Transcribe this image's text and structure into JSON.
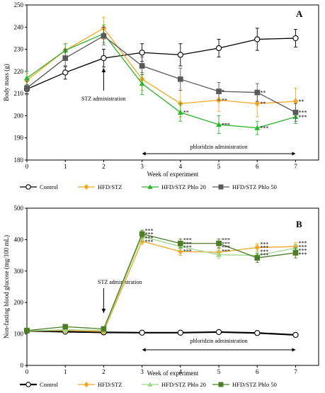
{
  "figure": {
    "panels": [
      {
        "letter": "A",
        "ylabel": "Body mass (g)",
        "xlabel": "Week of experiment",
        "stz_label": "STZ administration",
        "phlo_label": "phloridzin administration"
      },
      {
        "letter": "B",
        "ylabel": "Non-fasting blood glucose (mg/100 mL)",
        "xlabel": "Week of experiment",
        "stz_label": "STZ administration",
        "phlo_label": "phloridzin administration"
      }
    ],
    "legends": [
      [
        "Control",
        "HFD/STZ",
        "HFD/STZ Phlo 20",
        "HFD/STZ Phlo 50"
      ],
      [
        "Control",
        "HFD/STZ",
        "HFD/STZ Phlo 20",
        "HFD/STZ Phlo 50"
      ]
    ]
  },
  "chart_data": [
    {
      "type": "line",
      "panel": "A",
      "title": "",
      "xlabel": "Week of experiment",
      "ylabel": "Body mass (g)",
      "x": [
        0,
        1,
        2,
        3,
        4,
        5,
        6,
        7
      ],
      "xlim": [
        0,
        7.6
      ],
      "ylim": [
        180,
        250
      ],
      "yticks": [
        180,
        190,
        200,
        210,
        220,
        230,
        240,
        250
      ],
      "grid": false,
      "legend_position": "bottom",
      "series": [
        {
          "name": "Control",
          "values": [
            212,
            219.5,
            226,
            228.5,
            227.5,
            230.5,
            234.5,
            235
          ],
          "errors": [
            2,
            3,
            4,
            4,
            5,
            4,
            5,
            4
          ],
          "color": "#000000",
          "marker": "circle-open"
        },
        {
          "name": "HFD/STZ",
          "values": [
            216,
            229.5,
            239.5,
            216.5,
            205.5,
            207,
            205.5,
            206.5
          ],
          "errors": [
            3,
            3,
            5,
            5,
            6,
            5,
            6,
            6
          ],
          "color": "#F5A623",
          "marker": "diamond"
        },
        {
          "name": "HFD/STZ Phlo 20",
          "values": [
            217,
            229.5,
            237,
            214.5,
            201.5,
            196,
            194.5,
            199.5
          ],
          "errors": [
            3,
            3,
            4,
            5,
            4,
            4,
            3,
            3
          ],
          "color": "#2CB42C",
          "marker": "triangle"
        },
        {
          "name": "HFD/STZ Phlo 50",
          "values": [
            212.5,
            226,
            236,
            222.5,
            216.5,
            211,
            210.5,
            201.5
          ],
          "errors": [
            3,
            4,
            4,
            4,
            5,
            4,
            4,
            4
          ],
          "color": "#5A5A5A",
          "marker": "square"
        }
      ],
      "significance": [
        {
          "series": "HFD/STZ",
          "x": [
            4,
            5,
            6,
            7
          ],
          "labels": [
            "",
            "**",
            "**",
            "**"
          ]
        },
        {
          "series": "HFD/STZ Phlo 20",
          "x": [
            4,
            5,
            6,
            7
          ],
          "labels": [
            "**",
            "***",
            "***",
            "***"
          ]
        },
        {
          "series": "HFD/STZ Phlo 50",
          "x": [
            4,
            5,
            6,
            7
          ],
          "labels": [
            "",
            "*",
            "**",
            "***"
          ]
        }
      ],
      "annotations": [
        "STZ administration",
        "phloridzin administration"
      ]
    },
    {
      "type": "line",
      "panel": "B",
      "title": "",
      "xlabel": "Week of experiment",
      "ylabel": "Non-fasting blood glucose (mg/100 mL)",
      "x": [
        0,
        1,
        2,
        3,
        4,
        5,
        6,
        7
      ],
      "xlim": [
        0,
        7.6
      ],
      "ylim": [
        0,
        500
      ],
      "yticks": [
        0,
        100,
        200,
        300,
        400,
        500
      ],
      "grid": false,
      "legend_position": "bottom",
      "series": [
        {
          "name": "Control",
          "values": [
            110,
            107,
            105,
            104,
            104,
            106,
            103,
            97
          ],
          "errors": [
            3,
            3,
            3,
            3,
            3,
            3,
            3,
            3
          ],
          "color": "#000000",
          "marker": "circle-open"
        },
        {
          "name": "HFD/STZ",
          "values": [
            110,
            111,
            108,
            395,
            362,
            360,
            375,
            378
          ],
          "errors": [
            5,
            6,
            5,
            10,
            12,
            12,
            12,
            12
          ],
          "color": "#F5A623",
          "marker": "diamond"
        },
        {
          "name": "HFD/STZ Phlo 20",
          "values": [
            110,
            113,
            112,
            410,
            378,
            352,
            350,
            373
          ],
          "errors": [
            5,
            6,
            5,
            12,
            12,
            12,
            12,
            12
          ],
          "color": "#9BD88A",
          "marker": "triangle"
        },
        {
          "name": "HFD/STZ Phlo 50",
          "values": [
            111,
            123,
            116,
            418,
            388,
            388,
            342,
            358
          ],
          "errors": [
            5,
            6,
            5,
            12,
            14,
            14,
            14,
            16
          ],
          "color": "#4E7D26",
          "marker": "square"
        }
      ],
      "significance_labels": [
        "***",
        "***",
        "***",
        "***",
        "***"
      ],
      "annotations": [
        "STZ administration",
        "phloridzin administration"
      ]
    }
  ]
}
